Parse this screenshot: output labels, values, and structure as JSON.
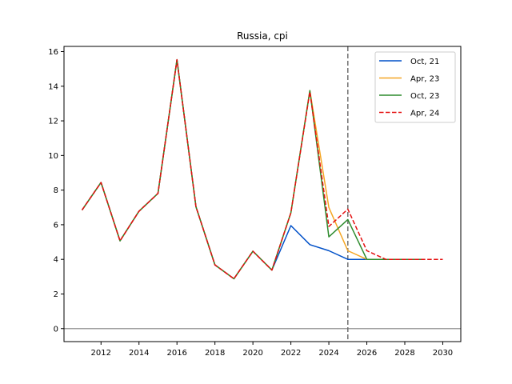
{
  "chart_data": {
    "type": "line",
    "title": "Russia, cpi",
    "xlabel": "",
    "ylabel": "",
    "xlim": [
      2010.05,
      2030.95
    ],
    "ylim": [
      -0.75,
      16.3
    ],
    "xticks": [
      2012,
      2014,
      2016,
      2018,
      2020,
      2022,
      2024,
      2026,
      2028,
      2030
    ],
    "yticks": [
      0,
      2,
      4,
      6,
      8,
      10,
      12,
      14,
      16
    ],
    "hline": 0,
    "vline": 2025,
    "legend_position": "top-right",
    "grid": false,
    "series": [
      {
        "name": "Oct, 21",
        "color": "#0050c8",
        "dash": "solid",
        "x": [
          2011,
          2012,
          2013,
          2014,
          2015,
          2016,
          2017,
          2018,
          2019,
          2020,
          2021,
          2022,
          2023,
          2024,
          2025,
          2026
        ],
        "values": [
          6.85,
          8.44,
          5.07,
          6.78,
          7.81,
          15.53,
          7.04,
          3.68,
          2.88,
          4.47,
          3.38,
          5.95,
          4.85,
          4.5,
          4.0,
          4.0
        ]
      },
      {
        "name": "Apr, 23",
        "color": "#f5a623",
        "dash": "solid",
        "x": [
          2011,
          2012,
          2013,
          2014,
          2015,
          2016,
          2017,
          2018,
          2019,
          2020,
          2021,
          2022,
          2023,
          2024,
          2025,
          2026,
          2027,
          2028
        ],
        "values": [
          6.85,
          8.44,
          5.07,
          6.78,
          7.81,
          15.53,
          7.04,
          3.68,
          2.88,
          4.47,
          3.38,
          6.69,
          13.75,
          7.0,
          4.5,
          4.0,
          4.0,
          4.0
        ]
      },
      {
        "name": "Oct, 23",
        "color": "#2e8b2e",
        "dash": "solid",
        "x": [
          2011,
          2012,
          2013,
          2014,
          2015,
          2016,
          2017,
          2018,
          2019,
          2020,
          2021,
          2022,
          2023,
          2024,
          2025,
          2026,
          2027,
          2028,
          2029
        ],
        "values": [
          6.85,
          8.44,
          5.07,
          6.78,
          7.81,
          15.53,
          7.04,
          3.68,
          2.88,
          4.47,
          3.38,
          6.69,
          13.75,
          5.3,
          6.3,
          4.0,
          4.0,
          4.0,
          4.0
        ]
      },
      {
        "name": "Apr, 24",
        "color": "#e41010",
        "dash": "dashed",
        "x": [
          2011,
          2012,
          2013,
          2014,
          2015,
          2016,
          2017,
          2018,
          2019,
          2020,
          2021,
          2022,
          2023,
          2024,
          2025,
          2026,
          2027,
          2028,
          2029,
          2030
        ],
        "values": [
          6.85,
          8.44,
          5.07,
          6.78,
          7.81,
          15.53,
          7.04,
          3.68,
          2.88,
          4.47,
          3.38,
          6.69,
          13.68,
          5.9,
          6.9,
          4.5,
          4.0,
          4.0,
          4.0,
          4.0
        ]
      }
    ]
  }
}
